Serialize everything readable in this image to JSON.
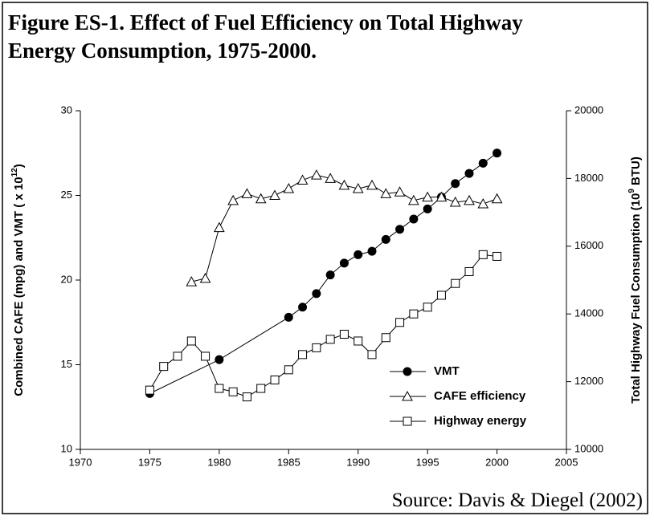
{
  "chart_data": {
    "type": "line",
    "title": [
      "Figure ES-1.  Effect of Fuel Efficiency on Total Highway",
      "Energy Consumption, 1975-2000."
    ],
    "y_label": "Combined CAFE (mpg) and VMT ( x 10",
    "y_label_sup": "12",
    "y_label_end": ")",
    "y2_label": "Total Highway Fuel Consumption (10",
    "y2_label_sup": "9",
    "y2_label_end": " BTU)",
    "source": "Source: Davis & Diegel (2002)",
    "xlim": [
      1970,
      2005
    ],
    "xticks": [
      1970,
      1975,
      1980,
      1985,
      1990,
      1995,
      2000,
      2005
    ],
    "ylim": [
      10,
      30
    ],
    "yticks": [
      10,
      15,
      20,
      25,
      30
    ],
    "y2lim": [
      10000,
      20000
    ],
    "y2ticks": [
      10000,
      12000,
      14000,
      16000,
      18000,
      20000
    ],
    "series": [
      {
        "name": "VMT",
        "marker": "circle",
        "color": "#000",
        "x": [
          1975,
          1980,
          1985,
          1986,
          1987,
          1988,
          1989,
          1990,
          1991,
          1992,
          1993,
          1994,
          1995,
          1996,
          1997,
          1998,
          1999,
          2000
        ],
        "values": [
          13.3,
          15.3,
          17.8,
          18.4,
          19.2,
          20.3,
          21.0,
          21.5,
          21.7,
          22.4,
          23.0,
          23.6,
          24.2,
          24.9,
          25.7,
          26.3,
          26.9,
          27.5
        ]
      },
      {
        "name": "CAFE efficiency",
        "marker": "triangle",
        "color": "#000",
        "x": [
          1978,
          1979,
          1980,
          1981,
          1982,
          1983,
          1984,
          1985,
          1986,
          1987,
          1988,
          1989,
          1990,
          1991,
          1992,
          1993,
          1994,
          1995,
          1996,
          1997,
          1998,
          1999,
          2000
        ],
        "values": [
          19.9,
          20.1,
          23.1,
          24.7,
          25.1,
          24.8,
          25.0,
          25.4,
          25.9,
          26.2,
          26.0,
          25.6,
          25.4,
          25.6,
          25.1,
          25.2,
          24.7,
          24.9,
          24.9,
          24.6,
          24.7,
          24.5,
          24.8
        ]
      },
      {
        "name": "Highway energy",
        "marker": "square",
        "color": "#000",
        "axis": "y2",
        "x": [
          1975,
          1976,
          1977,
          1978,
          1979,
          1980,
          1981,
          1982,
          1983,
          1984,
          1985,
          1986,
          1987,
          1988,
          1989,
          1990,
          1991,
          1992,
          1993,
          1994,
          1995,
          1996,
          1997,
          1998,
          1999,
          2000
        ],
        "values": [
          11750,
          12450,
          12750,
          13200,
          12750,
          11800,
          11700,
          11550,
          11800,
          12050,
          12350,
          12800,
          13000,
          13250,
          13400,
          13200,
          12800,
          13300,
          13750,
          14000,
          14200,
          14550,
          14900,
          15250,
          15750,
          15700
        ]
      }
    ]
  }
}
